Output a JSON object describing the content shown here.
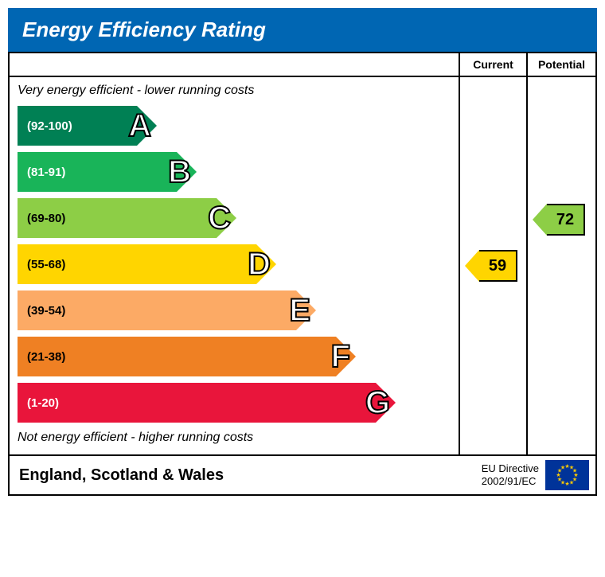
{
  "title": "Energy Efficiency Rating",
  "title_bg": "#0066b3",
  "columns": {
    "current": "Current",
    "potential": "Potential"
  },
  "captions": {
    "top": "Very energy efficient - lower running costs",
    "bottom": "Not energy efficient - higher running costs"
  },
  "layout": {
    "band_row_height": 58,
    "top_caption_height": 34,
    "base_bar_width": 150,
    "bar_width_step": 50
  },
  "bands": [
    {
      "letter": "A",
      "range": "(92-100)",
      "color": "#008054",
      "text_color": "#ffffff"
    },
    {
      "letter": "B",
      "range": "(81-91)",
      "color": "#19b459",
      "text_color": "#ffffff"
    },
    {
      "letter": "C",
      "range": "(69-80)",
      "color": "#8dce46",
      "text_color": "#000000"
    },
    {
      "letter": "D",
      "range": "(55-68)",
      "color": "#ffd500",
      "text_color": "#000000"
    },
    {
      "letter": "E",
      "range": "(39-54)",
      "color": "#fcaa65",
      "text_color": "#000000"
    },
    {
      "letter": "F",
      "range": "(21-38)",
      "color": "#ef8023",
      "text_color": "#000000"
    },
    {
      "letter": "G",
      "range": "(1-20)",
      "color": "#e9153b",
      "text_color": "#ffffff"
    }
  ],
  "ratings": {
    "current": {
      "value": "59",
      "band_index": 3,
      "color": "#ffd500"
    },
    "potential": {
      "value": "72",
      "band_index": 2,
      "color": "#8dce46"
    }
  },
  "footer": {
    "region": "England, Scotland & Wales",
    "directive_line1": "EU Directive",
    "directive_line2": "2002/91/EC",
    "flag_bg": "#003399",
    "star_color": "#ffcc00"
  }
}
